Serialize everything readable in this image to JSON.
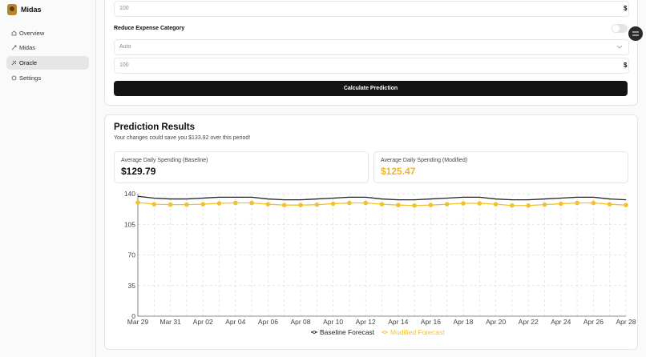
{
  "sidebar": {
    "app_name": "Midas",
    "nav": [
      "Overview",
      "Midas",
      "Oracle",
      "Settings"
    ]
  },
  "form": {
    "amount_1": "100",
    "currency_1": "$",
    "reduce_label": "Reduce Expense Category",
    "select_value": "Auto",
    "amount_2": "100",
    "currency_2": "$",
    "button": "Calculate Prediction"
  },
  "results": {
    "title": "Prediction Results",
    "subtitle": "Your changes could save you $133.92 over this period!",
    "baseline_label": "Average Daily Spending (Baseline)",
    "baseline_value": "$129.79",
    "modified_label": "Average Daily Spending (Modified)",
    "modified_value": "$125.47"
  },
  "chart_data": {
    "type": "line",
    "categories": [
      "Mar 29",
      null,
      "Mar 31",
      null,
      "Apr 02",
      null,
      "Apr 04",
      null,
      "Apr 06",
      null,
      "Apr 08",
      null,
      "Apr 10",
      null,
      "Apr 12",
      null,
      "Apr 14",
      null,
      "Apr 16",
      null,
      "Apr 18",
      null,
      "Apr 20",
      null,
      "Apr 22",
      null,
      "Apr 24",
      null,
      "Apr 26",
      null,
      "Apr 28"
    ],
    "series": [
      {
        "name": "Baseline Forecast",
        "color": "#222222",
        "values": [
          137,
          135,
          134,
          134,
          135,
          136,
          136,
          136,
          134,
          133,
          133,
          134,
          135,
          136,
          136,
          134,
          133,
          133,
          134,
          135,
          136,
          136,
          134,
          133,
          133,
          134,
          135,
          136,
          136,
          134,
          133
        ]
      },
      {
        "name": "Modified Forecast",
        "color": "#f2c12e",
        "values": [
          130,
          128,
          127.5,
          127.5,
          128,
          129,
          129.5,
          129.5,
          128,
          127,
          127,
          127.5,
          128.5,
          129.5,
          129.5,
          128,
          127,
          126.5,
          127,
          128,
          129,
          129,
          128,
          126.5,
          126.5,
          127.5,
          128.5,
          129.5,
          129.5,
          128,
          127
        ]
      }
    ],
    "ylim": [
      0,
      140
    ],
    "yticks": [
      0,
      35,
      70,
      105,
      140
    ],
    "grid": true
  }
}
